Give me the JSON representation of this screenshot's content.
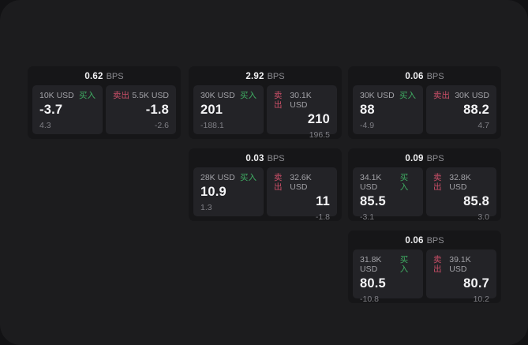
{
  "labels": {
    "bps_unit": "BPS",
    "buy": "买入",
    "sell": "卖出"
  },
  "colors": {
    "buy_green": "#3fae63",
    "sell_red": "#cb4f68",
    "panel_background": "#1c1c1e",
    "card_background": "#161618",
    "tile_background": "#232327"
  },
  "cards": [
    {
      "bps": "0.62",
      "buy": {
        "size": "10K USD",
        "price": "-3.7",
        "pnl": "4.3"
      },
      "sell": {
        "size": "5.5K USD",
        "price": "-1.8",
        "pnl": "-2.6"
      }
    },
    {
      "bps": "2.92",
      "buy": {
        "size": "30K USD",
        "price": "201",
        "pnl": "-188.1"
      },
      "sell": {
        "size": "30.1K USD",
        "price": "210",
        "pnl": "196.5"
      }
    },
    {
      "bps": "0.06",
      "buy": {
        "size": "30K USD",
        "price": "88",
        "pnl": "-4.9"
      },
      "sell": {
        "size": "30K USD",
        "price": "88.2",
        "pnl": "4.7"
      }
    },
    {
      "bps": "0.03",
      "buy": {
        "size": "28K USD",
        "price": "10.9",
        "pnl": "1.3"
      },
      "sell": {
        "size": "32.6K USD",
        "price": "11",
        "pnl": "-1.8"
      }
    },
    {
      "bps": "0.09",
      "buy": {
        "size": "34.1K USD",
        "price": "85.5",
        "pnl": "-3.1"
      },
      "sell": {
        "size": "32.8K USD",
        "price": "85.8",
        "pnl": "3.0"
      }
    },
    {
      "bps": "0.06",
      "buy": {
        "size": "31.8K USD",
        "price": "80.5",
        "pnl": "-10.8"
      },
      "sell": {
        "size": "39.1K USD",
        "price": "80.7",
        "pnl": "10.2"
      }
    }
  ]
}
